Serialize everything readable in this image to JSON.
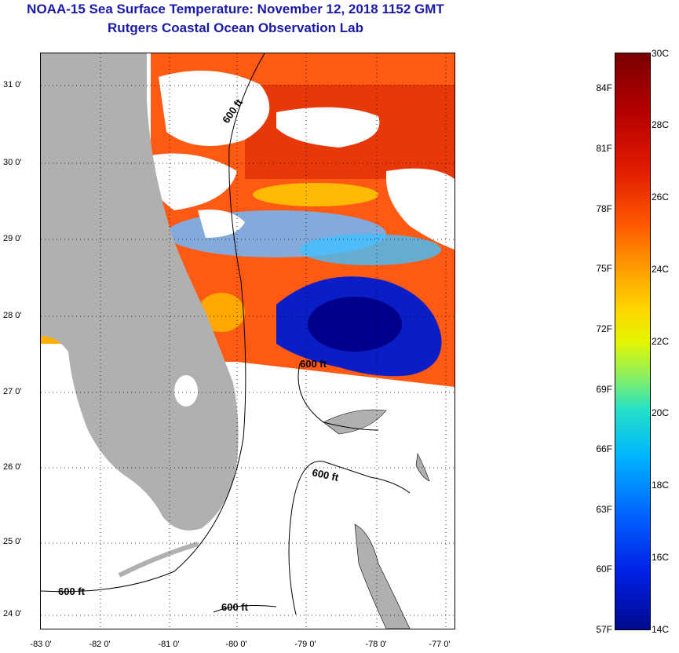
{
  "title": {
    "line1": "NOAA-15 Sea Surface Temperature:  November 12, 2018 1152 GMT",
    "line2": "Rutgers Coastal Ocean Observation Lab"
  },
  "map": {
    "lat_labels": [
      "31 0'",
      "30 0'",
      "29 0'",
      "28 0'",
      "27 0'",
      "26 0'",
      "25 0'",
      "24 0'"
    ],
    "lon_labels": [
      "-83 0'",
      "-82 0'",
      "-81 0'",
      "-80 0'",
      "-79 0'",
      "-78 0'",
      "-77 0'"
    ],
    "contour_labels": [
      "600 ft",
      "600 ft",
      "600 ft",
      "600 ft",
      "600 ft"
    ],
    "colors": {
      "land": "#b0b0b0",
      "cloud": "#ffffff",
      "contour": "#000000"
    }
  },
  "colorbar": {
    "celsius": [
      "30C",
      "28C",
      "26C",
      "24C",
      "22C",
      "20C",
      "18C",
      "16C",
      "14C"
    ],
    "fahrenheit": [
      "84F",
      "81F",
      "78F",
      "75F",
      "72F",
      "69F",
      "66F",
      "63F",
      "60F",
      "57F"
    ]
  }
}
